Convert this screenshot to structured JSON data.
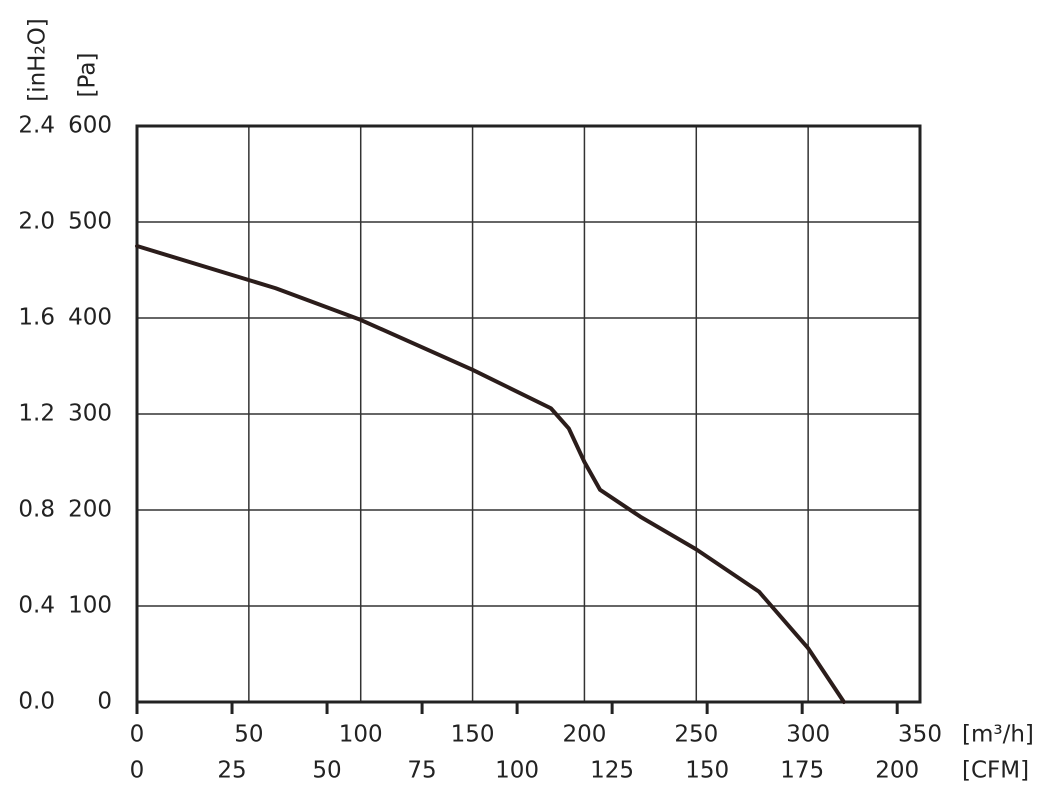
{
  "chart_data": {
    "type": "line",
    "y_label": "[Pa]",
    "y2_label": "[inH₂O]",
    "x_label": "[m³/h]",
    "x2_label": "[CFM]",
    "x": [
      0,
      62,
      100,
      150,
      185,
      193,
      200,
      207,
      225,
      250,
      278,
      300,
      316
    ],
    "values": [
      475,
      431,
      398,
      346,
      306,
      285,
      250,
      221,
      193,
      159,
      115,
      56,
      0
    ],
    "color": "#2b1d1b",
    "xlim": [
      0,
      350
    ],
    "xticks": [
      0,
      50,
      100,
      150,
      200,
      250,
      300,
      350
    ],
    "x2lim": [
      0,
      206
    ],
    "x2ticks": [
      0,
      25,
      50,
      75,
      100,
      125,
      150,
      175,
      200
    ],
    "ylim": [
      0,
      600
    ],
    "yticks": [
      0,
      100,
      200,
      300,
      400,
      500,
      600
    ],
    "y2lim": [
      0,
      2.4
    ],
    "y2ticks": [
      {
        "value": 0,
        "label": "0.0"
      },
      0.4,
      0.8,
      1.2,
      1.6,
      {
        "value": 2,
        "label": "2.0"
      },
      2.4
    ],
    "grid": true
  }
}
